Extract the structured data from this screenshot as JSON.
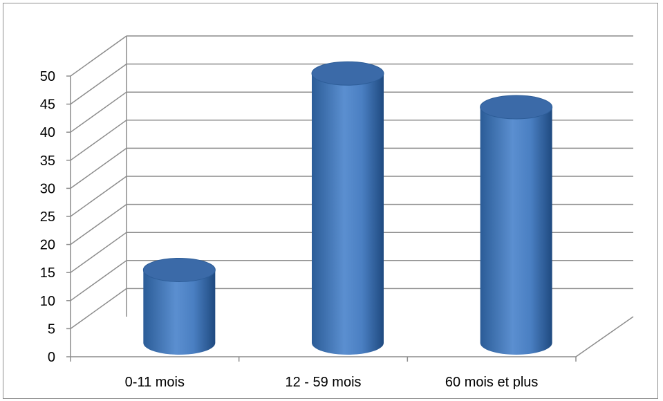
{
  "chart_data": {
    "type": "bar",
    "style": "3d-cylinder",
    "categories": [
      "0-11 mois",
      "12 - 59 mois",
      "60 mois et plus"
    ],
    "values": [
      13,
      48,
      42
    ],
    "ylim": [
      0,
      50
    ],
    "ytick_step": 5,
    "yticks": [
      "0",
      "5",
      "10",
      "15",
      "20",
      "25",
      "30",
      "35",
      "40",
      "45",
      "50"
    ],
    "grid": true,
    "legend": "none",
    "colors": {
      "bar": "#4f81bd",
      "bar_dark": "#2a5a94",
      "bar_top": "#3b6aa8",
      "grid": "#8c8c8c",
      "frame": "#8c8c8c"
    }
  }
}
